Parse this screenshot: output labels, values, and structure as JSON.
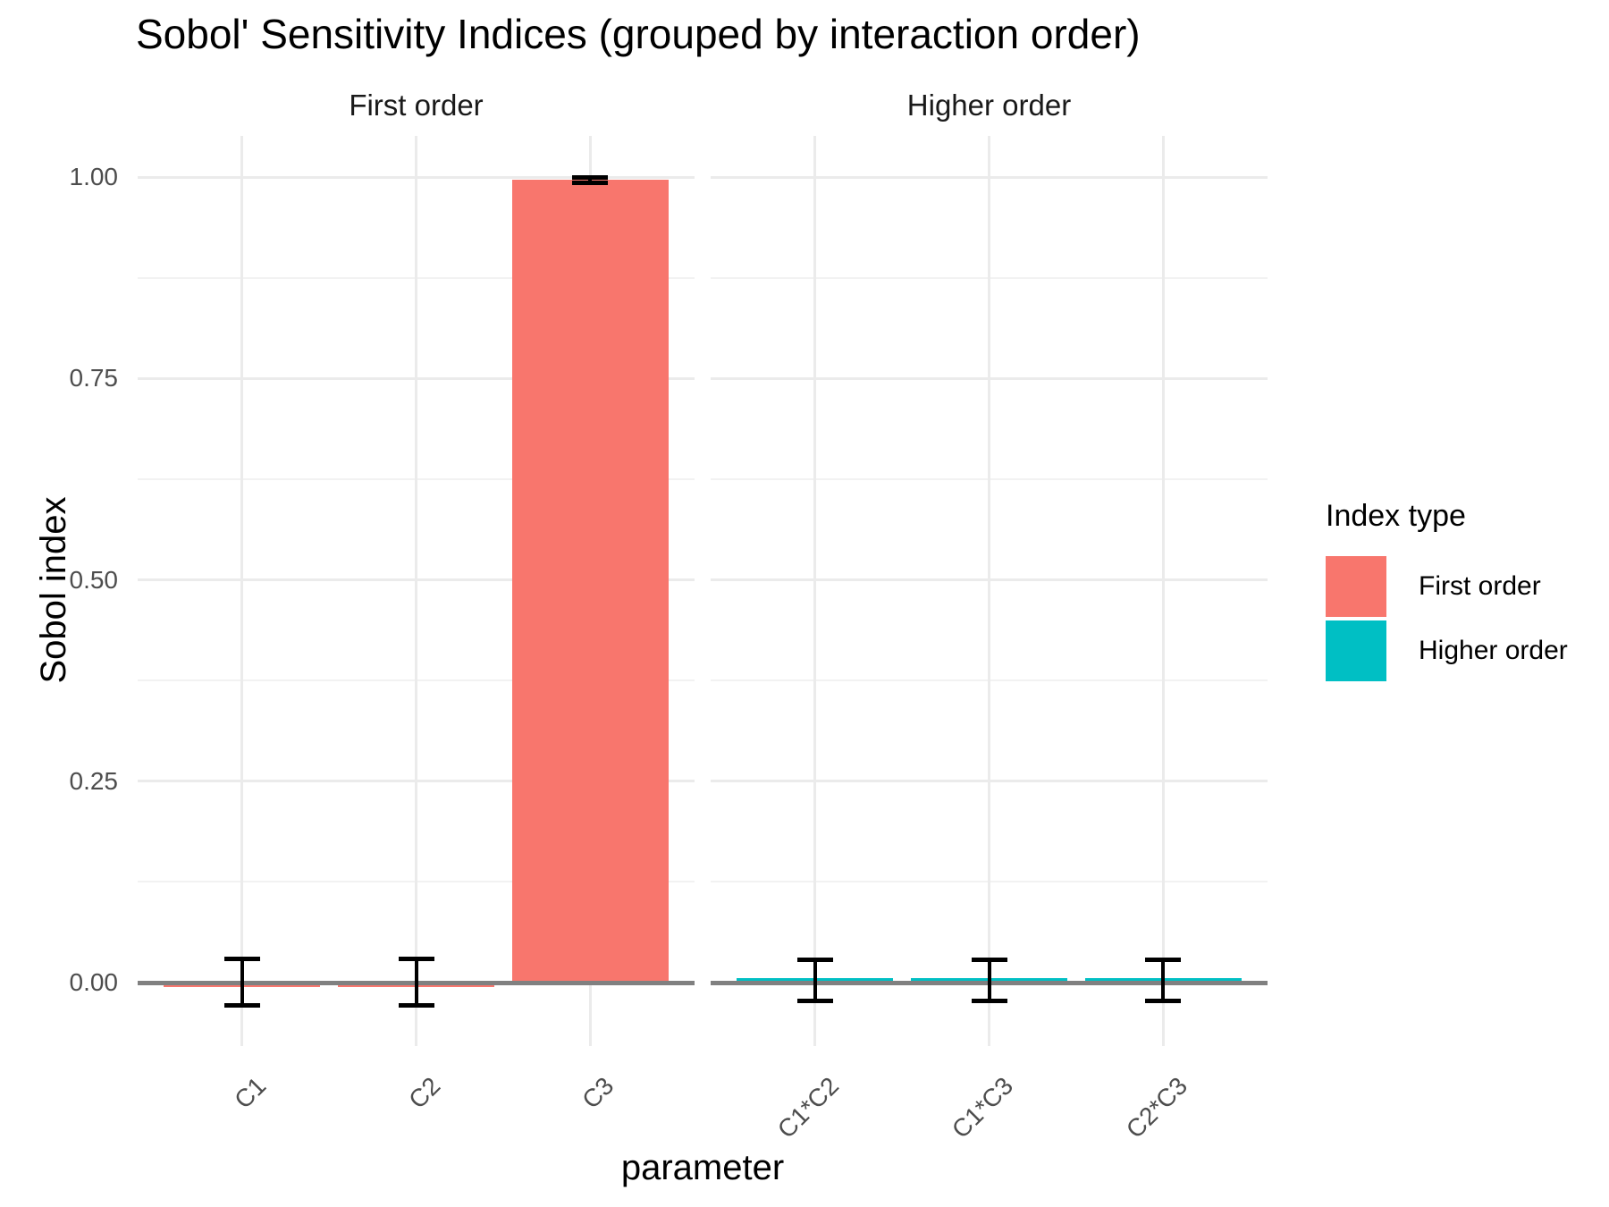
{
  "title": "Sobol' Sensitivity Indices (grouped by interaction order)",
  "chart_data": {
    "type": "bar",
    "title": "Sobol' Sensitivity Indices (grouped by interaction order)",
    "xlabel": "parameter",
    "ylabel": "Sobol index",
    "ylim": [
      -0.079,
      1.051
    ],
    "yticks": [
      "0.00",
      "0.25",
      "0.50",
      "0.75",
      "1.00"
    ],
    "ytick_values": [
      0,
      0.25,
      0.5,
      0.75,
      1
    ],
    "y_minor": [
      0.125,
      0.375,
      0.625,
      0.875
    ],
    "grid": true,
    "zero_line": true,
    "legend": {
      "title": "Index type",
      "position": "right",
      "entries": [
        {
          "label": "First order",
          "color": "#F8766D"
        },
        {
          "label": "Higher order",
          "color": "#00BFC4"
        }
      ]
    },
    "facets": [
      {
        "label": "First order",
        "color": "#F8766D",
        "categories": [
          "C1",
          "C2",
          "C3"
        ],
        "values": [
          -0.006,
          -0.006,
          0.997
        ],
        "error_low": [
          -0.028,
          -0.028,
          0.993
        ],
        "error_high": [
          0.029,
          0.029,
          1.0
        ]
      },
      {
        "label": "Higher order",
        "color": "#00BFC4",
        "categories": [
          "C1*C2",
          "C1*C3",
          "C2*C3"
        ],
        "values": [
          0.006,
          0.006,
          0.006
        ],
        "error_low": [
          -0.023,
          -0.023,
          -0.023
        ],
        "error_high": [
          0.028,
          0.028,
          0.028
        ]
      }
    ]
  },
  "colors": {
    "first_order": "#F8766D",
    "higher_order": "#00BFC4",
    "grid_major": "#EBEBEB",
    "grid_minor": "#F2F2F2",
    "axis_text": "#4D4D4D",
    "strip_text": "#1A1A1A",
    "zero_line": "#808080",
    "error_bar": "#000000",
    "background": "#FFFFFF"
  }
}
